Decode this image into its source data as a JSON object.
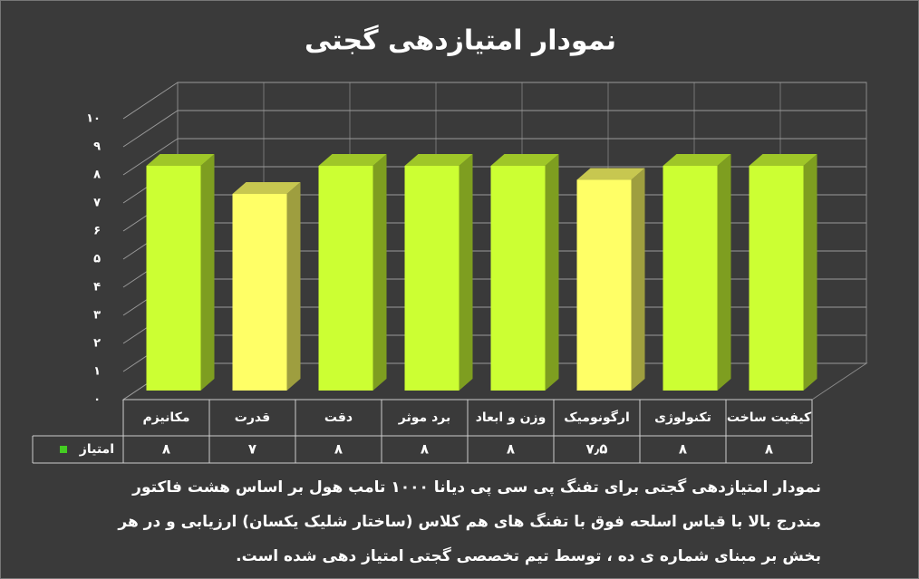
{
  "chart_data": {
    "type": "bar",
    "title": "نمودار امتیازدهی گجتی",
    "categories": [
      "مکانیزم",
      "قدرت",
      "دقت",
      "برد موثر",
      "وزن و ابعاد",
      "ارگونومیک",
      "تکنولوژی",
      "کیفیت ساخت"
    ],
    "series": [
      {
        "name": "امتیاز",
        "color": "#44cc22",
        "colors": [
          "#ccff33",
          "#ffff66",
          "#ccff33",
          "#ccff33",
          "#ccff33",
          "#ffff66",
          "#ccff33",
          "#ccff33"
        ],
        "values": [
          8,
          7,
          8,
          8,
          8,
          7.5,
          8,
          8
        ],
        "value_labels": [
          "۸",
          "۷",
          "۸",
          "۸",
          "۸",
          "۷٫۵",
          "۸",
          "۸"
        ]
      }
    ],
    "ylim": [
      0,
      10
    ],
    "yticks": [
      {
        "value": 0,
        "label": "۰"
      },
      {
        "value": 1,
        "label": "۱"
      },
      {
        "value": 2,
        "label": "۲"
      },
      {
        "value": 3,
        "label": "۳"
      },
      {
        "value": 4,
        "label": "۴"
      },
      {
        "value": 5,
        "label": "۵"
      },
      {
        "value": 6,
        "label": "۶"
      },
      {
        "value": 7,
        "label": "۷"
      },
      {
        "value": 8,
        "label": "۸"
      },
      {
        "value": 9,
        "label": "۹"
      },
      {
        "value": 10,
        "label": "۱۰"
      }
    ],
    "grid": true,
    "caption": "نمودار امتیازدهی گجتی برای تفنگ پی سی پی دیانا ۱۰۰۰ تامب هول بر اساس هشت فاکتور مندرج بالا با قیاس اسلحه فوق با تفنگ های هم کلاس (ساختار شلیک یکسان) ارزیابی و در هر بخش بر مبنای شماره ی ده ، توسط تیم تخصصی گجتی امتیاز دهی شده است."
  }
}
